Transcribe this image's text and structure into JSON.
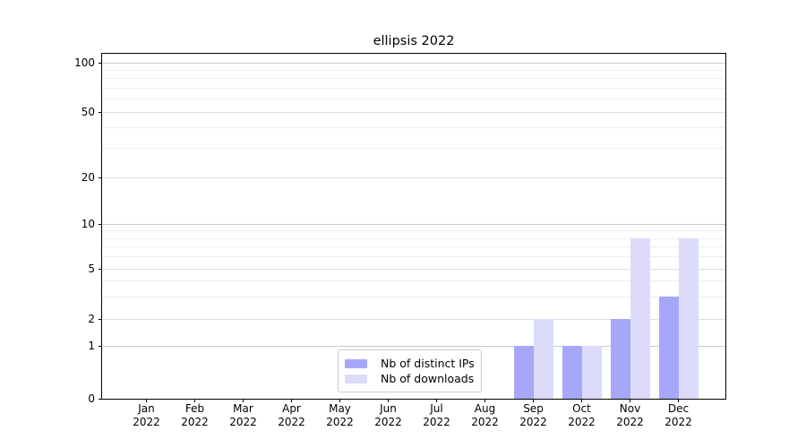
{
  "chart_data": {
    "type": "bar",
    "title": "ellipsis 2022",
    "categories": [
      "Jan",
      "Feb",
      "Mar",
      "Apr",
      "May",
      "Jun",
      "Jul",
      "Aug",
      "Sep",
      "Oct",
      "Nov",
      "Dec"
    ],
    "category_year": "2022",
    "series": [
      {
        "name": "Nb of distinct IPs",
        "color": "#a7a7fa",
        "values": [
          0,
          0,
          0,
          0,
          0,
          0,
          0,
          0,
          1,
          1,
          2,
          3
        ]
      },
      {
        "name": "Nb of downloads",
        "color": "#dcdcfa",
        "values": [
          0,
          0,
          0,
          0,
          0,
          0,
          0,
          0,
          2,
          1,
          8,
          8
        ]
      }
    ],
    "y_axis": {
      "scale": "asinh-like (linear 0-1, log above)",
      "ticks": [
        0,
        1,
        2,
        5,
        10,
        20,
        50,
        100
      ],
      "minor_ticks": [
        3,
        4,
        6,
        7,
        8,
        9,
        30,
        40,
        60,
        70,
        80,
        90
      ],
      "emphasized_grid_values": [
        1,
        10,
        100
      ],
      "ylim": [
        0,
        113
      ]
    },
    "x_axis": {
      "label_format": "month over year, two lines"
    },
    "legend": {
      "position": "lower center",
      "entries": [
        "Nb of distinct IPs",
        "Nb of downloads"
      ]
    },
    "grid": true,
    "colors": {
      "major_grid": "#c9c9c9",
      "minor_grid": "#ededed",
      "spine": "#000000",
      "text": "#000000",
      "legend_border": "#cccccc",
      "background": "#ffffff"
    }
  }
}
